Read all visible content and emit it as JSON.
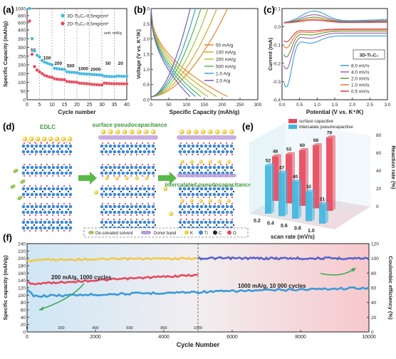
{
  "panels": {
    "a": {
      "label": "(a)"
    },
    "b": {
      "label": "(b)"
    },
    "c": {
      "label": "(c)"
    },
    "d": {
      "label": "(d)"
    },
    "e": {
      "label": "(e)"
    },
    "f": {
      "label": "(f)"
    }
  },
  "chart_data": [
    {
      "id": "a",
      "type": "scatter",
      "xlabel": "Cycle number",
      "ylabel": "Specific Capacity (mAh/g)",
      "xlim": [
        0,
        40
      ],
      "xticks": [
        0,
        5,
        10,
        15,
        20,
        25,
        30,
        35,
        40
      ],
      "ylim": [
        0,
        1000
      ],
      "ybreak": true,
      "yticks": [
        0,
        50,
        100,
        150,
        200,
        250,
        300,
        350,
        400,
        600,
        800,
        1000
      ],
      "unit_note": "unit: mA/g",
      "rate_labels": [
        {
          "text": "50",
          "x": 2.5,
          "y": 275
        },
        {
          "text": "100",
          "x": 8,
          "y": 230
        },
        {
          "text": "200",
          "x": 12.5,
          "y": 200
        },
        {
          "text": "500",
          "x": 17.5,
          "y": 185
        },
        {
          "text": "1000",
          "x": 22.5,
          "y": 170
        },
        {
          "text": "2000",
          "x": 27.5,
          "y": 165
        },
        {
          "text": "50",
          "x": 32.5,
          "y": 200
        },
        {
          "text": "20",
          "x": 37.5,
          "y": 200
        }
      ],
      "series": [
        {
          "name": "3D-Ti₃C₂-0.5mg/cm²",
          "color": "#3fb6e0",
          "x": [
            1,
            2,
            3,
            4,
            5,
            6,
            7,
            8,
            9,
            10,
            11,
            12,
            13,
            14,
            15,
            16,
            17,
            18,
            19,
            20,
            21,
            22,
            23,
            24,
            25,
            26,
            27,
            28,
            29,
            30,
            31,
            32,
            33,
            34,
            35,
            36,
            37,
            38,
            39,
            40
          ],
          "y": [
            1000,
            350,
            280,
            255,
            245,
            225,
            215,
            210,
            205,
            200,
            180,
            178,
            176,
            175,
            174,
            160,
            158,
            157,
            156,
            155,
            150,
            149,
            148,
            147,
            146,
            145,
            144,
            143,
            142,
            141,
            135,
            134,
            133,
            133,
            132,
            135,
            135,
            134,
            134,
            134
          ]
        },
        {
          "name": "2D-Ti₃C₂-0.5mg/cm²",
          "color": "#e8485b",
          "x": [
            1,
            2,
            3,
            4,
            5,
            6,
            7,
            8,
            9,
            10,
            11,
            12,
            13,
            14,
            15,
            16,
            17,
            18,
            19,
            20,
            21,
            22,
            23,
            24,
            25,
            26,
            27,
            28,
            29,
            30,
            31,
            32,
            33,
            34,
            35,
            36,
            37,
            38,
            39,
            40
          ],
          "y": [
            650,
            260,
            190,
            170,
            160,
            150,
            140,
            135,
            130,
            128,
            120,
            118,
            116,
            115,
            114,
            105,
            103,
            102,
            101,
            100,
            95,
            94,
            93,
            92,
            91,
            88,
            87,
            86,
            85,
            84,
            95,
            94,
            93,
            92,
            92,
            92,
            91,
            91,
            91,
            91
          ]
        }
      ]
    },
    {
      "id": "b",
      "type": "line",
      "xlabel": "Specific Capacity (mAh/g)",
      "ylabel": "Voltage (V vs. K⁺/K)",
      "xlim": [
        0,
        300
      ],
      "xticks": [
        0,
        50,
        100,
        150,
        200,
        250,
        300
      ],
      "ylim": [
        0,
        3.0
      ],
      "yticks": [
        0.0,
        0.5,
        1.0,
        1.5,
        2.0,
        2.5,
        3.0
      ],
      "series": [
        {
          "name": "50 mA/g",
          "color": "#e7862a",
          "cap": 215
        },
        {
          "name": "100 mA/g",
          "color": "#d4a82a",
          "cap": 185
        },
        {
          "name": "200 mA/g",
          "color": "#a4c43a",
          "cap": 160
        },
        {
          "name": "500 mA/g",
          "color": "#4dba5a",
          "cap": 140
        },
        {
          "name": "1.0 A/g",
          "color": "#3aa0c8",
          "cap": 125
        },
        {
          "name": "2.0 A/g",
          "color": "#7a5ab8",
          "cap": 110
        }
      ]
    },
    {
      "id": "c",
      "type": "line",
      "xlabel": "Potential (V vs. K⁺/K)",
      "ylabel": "Current (mA)",
      "xlim": [
        0,
        3.0
      ],
      "xticks": [
        0.0,
        0.5,
        1.0,
        1.5,
        2.0,
        2.5,
        3.0
      ],
      "ylim": [
        -0.4,
        0.1
      ],
      "yticks": [
        -0.4,
        -0.3,
        -0.2,
        -0.1,
        0.0,
        0.1
      ],
      "inset_label": "3D-Ti₃C₂",
      "series": [
        {
          "name": "8.0 mV/s",
          "color": "#3aa0d8",
          "amp": 1.0
        },
        {
          "name": "4.0 mV/s",
          "color": "#a05ab0",
          "amp": 0.7
        },
        {
          "name": "2.0 mV/s",
          "color": "#5a9a3a",
          "amp": 0.5
        },
        {
          "name": "1.0 mV/s",
          "color": "#e07a2a",
          "amp": 0.35
        },
        {
          "name": "0.5 mV/s",
          "color": "#d83a4a",
          "amp": 0.25
        }
      ]
    },
    {
      "id": "e",
      "type": "bar",
      "xlabel": "scan rate (mV/s)",
      "ylabel": "Reaction rate (%)",
      "categories": [
        "0.2",
        "0.4",
        "0.6",
        "0.8",
        "1.0"
      ],
      "series": [
        {
          "name": "surface capacitive",
          "color": "#e8485b",
          "values": [
            48,
            53,
            60,
            68,
            79
          ]
        },
        {
          "name": "intercalate pseudocapacitive",
          "color": "#3fb6e0",
          "values": [
            52,
            47,
            40,
            32,
            21
          ]
        }
      ],
      "ylim": [
        0,
        80
      ],
      "yticks": [
        0,
        20,
        40,
        60,
        80
      ]
    },
    {
      "id": "f",
      "type": "scatter",
      "xlabel": "Cycle Number",
      "ylabel": "Specific capacity (mAh/g)",
      "y2label": "Coulombic efficiency (%)",
      "xlim": [
        0,
        10000
      ],
      "xticks": [
        0,
        2000,
        4000,
        6000,
        8000,
        10000
      ],
      "ylim": [
        0,
        240
      ],
      "yticks": [
        0,
        20,
        40,
        60,
        80,
        100,
        120,
        140,
        160,
        180,
        200,
        220,
        240
      ],
      "y2lim": [
        0,
        120
      ],
      "y2ticks": [
        0,
        20,
        40,
        60,
        80,
        100,
        120
      ],
      "inset_xticks": [
        0,
        200,
        400,
        600,
        800,
        1000
      ],
      "annotations": [
        "200 mA/g, 1000 cycles",
        "1000 mA/g, 10 000 cycles"
      ],
      "series": [
        {
          "name": "capacity 200 mA/g",
          "color": "#e8485b",
          "x": [
            0,
            50,
            1000
          ],
          "y": [
            135,
            130,
            155
          ]
        },
        {
          "name": "capacity 1000 mA/g",
          "color": "#3a9ad8",
          "x": [
            0,
            100,
            5000,
            10000
          ],
          "y": [
            115,
            97,
            110,
            120
          ]
        },
        {
          "name": "coulombic efficiency 200 mA/g",
          "color": "#f0c84a",
          "x": [
            0,
            1000
          ],
          "y": [
            98,
            100
          ]
        },
        {
          "name": "coulombic efficiency 1000 mA/g",
          "color": "#5a62c8",
          "x": [
            0,
            10000
          ],
          "y": [
            100,
            100
          ]
        }
      ]
    }
  ],
  "schematic": {
    "titles": [
      "EDLC",
      "surface pseudocapacitance",
      "intercalated pseudocapacitance"
    ],
    "legend": {
      "solvent": "De-solvated solvent",
      "band": "Donor band",
      "atoms": [
        "K",
        "Ti",
        "C",
        "O"
      ]
    },
    "colors": {
      "K": "#f0d23a",
      "Ti": "#3a8ad8",
      "C": "#222222",
      "O": "#e8485b",
      "arrow": "#5ab848"
    }
  }
}
